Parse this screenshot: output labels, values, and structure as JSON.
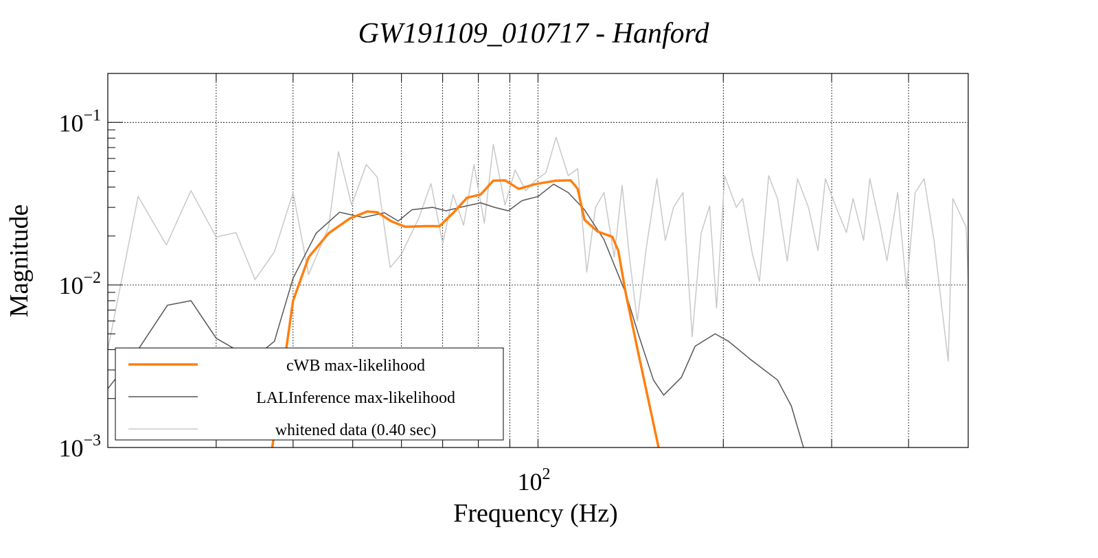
{
  "chart_data": {
    "type": "line",
    "title": "GW191109_010717 - Hanford",
    "xlabel": "Frequency (Hz)",
    "ylabel": "Magnitude",
    "xscale": "log",
    "yscale": "log",
    "xlim": [
      20,
      500
    ],
    "ylim": [
      0.001,
      0.2
    ],
    "grid": true,
    "legend_position": "bottom-left",
    "x_tick_labels": [
      {
        "value": 100,
        "base": "10",
        "exp": "2"
      }
    ],
    "y_tick_labels": [
      {
        "value": 0.1,
        "base": "10",
        "exp": "−1"
      },
      {
        "value": 0.01,
        "base": "10",
        "exp": "−2"
      },
      {
        "value": 0.001,
        "base": "10",
        "exp": "−3"
      }
    ],
    "x_gridlines": [
      30,
      40,
      50,
      60,
      70,
      80,
      90,
      100,
      200,
      300,
      400
    ],
    "series": [
      {
        "name": "whitened data (0.40 sec)",
        "color": "#c8c8c8",
        "x": [
          20,
          22.4,
          24.9,
          27.3,
          30,
          32.3,
          34.7,
          37.3,
          40,
          42.4,
          45.7,
          47.4,
          49.8,
          52.6,
          54.8,
          57.5,
          60,
          64,
          67,
          70,
          72.8,
          75.7,
          78.7,
          81.8,
          84.6,
          88.4,
          91.8,
          95.5,
          99,
          103,
          107,
          112,
          116,
          120,
          124,
          128,
          133,
          137,
          141,
          145,
          150,
          156,
          161,
          166,
          172,
          178,
          184,
          190,
          195,
          201,
          210,
          215,
          223,
          229,
          237,
          245,
          254,
          264,
          275,
          285,
          293,
          305,
          317,
          325,
          338,
          346,
          360,
          369,
          384,
          397,
          410,
          424,
          440,
          452,
          464,
          472,
          484,
          496,
          500
        ],
        "y": [
          0.004,
          0.035,
          0.0176,
          0.038,
          0.0197,
          0.021,
          0.0108,
          0.016,
          0.037,
          0.0116,
          0.0228,
          0.066,
          0.031,
          0.055,
          0.046,
          0.0128,
          0.0155,
          0.0257,
          0.042,
          0.018,
          0.036,
          0.0233,
          0.055,
          0.024,
          0.073,
          0.031,
          0.051,
          0.038,
          0.044,
          0.049,
          0.081,
          0.047,
          0.052,
          0.012,
          0.03,
          0.037,
          0.0148,
          0.041,
          0.0141,
          0.006,
          0.017,
          0.045,
          0.0188,
          0.03,
          0.037,
          0.0048,
          0.0207,
          0.0306,
          0.0072,
          0.047,
          0.03,
          0.034,
          0.0155,
          0.0105,
          0.047,
          0.034,
          0.014,
          0.045,
          0.03,
          0.0163,
          0.045,
          0.03,
          0.021,
          0.034,
          0.0188,
          0.045,
          0.0228,
          0.0141,
          0.037,
          0.0095,
          0.037,
          0.045,
          0.0188,
          0.0078,
          0.0034,
          0.034,
          0.0277,
          0.0228,
          0.0105
        ]
      },
      {
        "name": "LALInference max-likelihood",
        "color": "#555555",
        "x": [
          20,
          22.3,
          25,
          27.3,
          30,
          32.3,
          35,
          37.3,
          40,
          43.6,
          47.6,
          52,
          56.3,
          59.3,
          62.4,
          67.4,
          70.9,
          74.7,
          80.7,
          85,
          89.5,
          94.2,
          100,
          106,
          112,
          119,
          128,
          139,
          146,
          154,
          160,
          171,
          180,
          194,
          204,
          221,
          245,
          258,
          270
        ],
        "y": [
          0.0023,
          0.0039,
          0.0075,
          0.008,
          0.0047,
          0.004,
          0.0037,
          0.0045,
          0.011,
          0.0208,
          0.028,
          0.026,
          0.0278,
          0.0247,
          0.029,
          0.03,
          0.0286,
          0.03,
          0.032,
          0.03,
          0.0286,
          0.033,
          0.035,
          0.0417,
          0.037,
          0.029,
          0.019,
          0.0088,
          0.0048,
          0.0026,
          0.0021,
          0.0027,
          0.0042,
          0.005,
          0.0045,
          0.0035,
          0.0026,
          0.0018,
          0.001
        ]
      },
      {
        "name": "cWB max-likelihood",
        "color": "#ff7f0e",
        "x": [
          37,
          40,
          42.4,
          45.7,
          49.5,
          52.8,
          54.8,
          57.7,
          60.8,
          65.7,
          69.2,
          72.8,
          76.7,
          80.7,
          84.6,
          88.4,
          93,
          99,
          107,
          113,
          116,
          119,
          125,
          132,
          135,
          139,
          146,
          157
        ],
        "y": [
          0.001,
          0.008,
          0.0148,
          0.0208,
          0.0257,
          0.0283,
          0.028,
          0.0247,
          0.0228,
          0.023,
          0.023,
          0.0277,
          0.0344,
          0.036,
          0.0438,
          0.044,
          0.039,
          0.0417,
          0.0438,
          0.044,
          0.039,
          0.0252,
          0.0213,
          0.0198,
          0.0163,
          0.0087,
          0.0036,
          0.001
        ]
      }
    ],
    "legend": [
      {
        "label": "cWB max-likelihood",
        "color": "#ff7f0e"
      },
      {
        "label": "LALInference max-likelihood",
        "color": "#555555"
      },
      {
        "label": "whitened data (0.40 sec)",
        "color": "#c8c8c8"
      }
    ]
  }
}
